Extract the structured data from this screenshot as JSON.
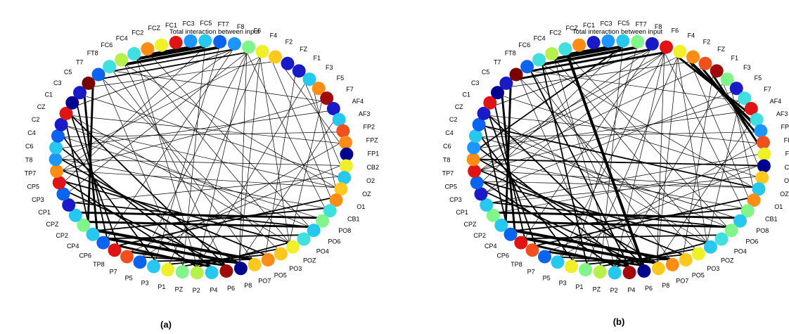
{
  "panels": [
    {
      "caption": "(a)",
      "title": "Total interaction between input"
    },
    {
      "caption": "(b)",
      "title": "Total interaction between input"
    }
  ],
  "electrodes": [
    "FC1",
    "FC3",
    "FC5",
    "FT7",
    "F8",
    "F6",
    "F4",
    "F2",
    "FZ",
    "F1",
    "F3",
    "F5",
    "F7",
    "AF4",
    "AF3",
    "FP2",
    "FPZ",
    "FP1",
    "CB2",
    "O2",
    "OZ",
    "O1",
    "CB1",
    "PO8",
    "PO6",
    "PO4",
    "POZ",
    "PO3",
    "PO5",
    "PO7",
    "P8",
    "P6",
    "P4",
    "P2",
    "PZ",
    "P1",
    "P3",
    "P5",
    "P7",
    "TP8",
    "CP6",
    "CP4",
    "CP2",
    "CPZ",
    "CP1",
    "CP3",
    "CP5",
    "TP7",
    "T8",
    "C6",
    "C4",
    "C2",
    "CZ",
    "C1",
    "C3",
    "C5",
    "T7",
    "FT8",
    "FC6",
    "FC4",
    "FC2",
    "FCZ"
  ],
  "colors": {
    "palette": [
      "#1a1ac8",
      "#0a64f0",
      "#1e96ff",
      "#26c8f0",
      "#40e0e0",
      "#7ff58a",
      "#b8f04a",
      "#f0f028",
      "#ffc81e",
      "#ff8c14",
      "#f0501e",
      "#e01414",
      "#a00a0a",
      "#7a0000",
      "#000090"
    ],
    "node_colors": [
      11,
      2,
      3,
      1,
      2,
      5,
      7,
      8,
      0,
      0,
      3,
      9,
      12,
      0,
      3,
      10,
      9,
      14,
      7,
      3,
      8,
      9,
      4,
      5,
      3,
      4,
      7,
      8,
      9,
      8,
      14,
      12,
      3,
      6,
      5,
      7,
      3,
      1,
      10,
      11,
      1,
      3,
      5,
      3,
      0,
      1,
      11,
      9,
      2,
      3,
      1,
      0,
      11,
      14,
      0,
      13,
      1,
      4,
      6,
      4,
      9,
      7
    ],
    "node_colors_b": [
      0,
      2,
      3,
      5,
      0,
      11,
      7,
      9,
      10,
      12,
      5,
      0,
      4,
      11,
      4,
      2,
      10,
      7,
      14,
      8,
      3,
      9,
      5,
      3,
      5,
      4,
      3,
      7,
      8,
      9,
      8,
      14,
      12,
      3,
      6,
      5,
      7,
      3,
      1,
      10,
      11,
      1,
      3,
      5,
      3,
      0,
      1,
      11,
      9,
      2,
      3,
      1,
      0,
      11,
      14,
      0,
      13,
      1,
      4,
      6,
      4,
      9
    ],
    "edge": "#000000"
  }
}
